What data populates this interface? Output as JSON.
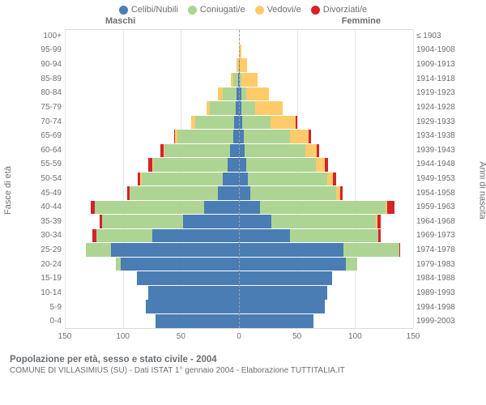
{
  "legend": {
    "items": [
      {
        "label": "Celibi/Nubili",
        "color": "#4a7db4"
      },
      {
        "label": "Coniugati/e",
        "color": "#aed494"
      },
      {
        "label": "Vedovi/e",
        "color": "#ffcb6a"
      },
      {
        "label": "Divorziati/e",
        "color": "#d4232a"
      }
    ]
  },
  "gender": {
    "male": "Maschi",
    "female": "Femmine"
  },
  "axis": {
    "left_title": "Fasce di età",
    "right_title": "Anni di nascita",
    "xmax": 150,
    "xticks": [
      150,
      100,
      50,
      0,
      50,
      100,
      150
    ],
    "xtick_labels": [
      "150",
      "100",
      "50",
      "0",
      "50",
      "100",
      "150"
    ]
  },
  "colors": {
    "celibi": "#4a7db4",
    "coniugati": "#aed494",
    "vedovi": "#ffcb6a",
    "divorziati": "#d4232a",
    "grid": "#e5e5e5",
    "center": "#9ca0a4",
    "text": "#6b6f73",
    "bg": "#ffffff"
  },
  "rows": [
    {
      "age": "100+",
      "birth": "≤ 1903",
      "m": [
        0,
        0,
        0,
        0
      ],
      "f": [
        0,
        0,
        0,
        0
      ]
    },
    {
      "age": "95-99",
      "birth": "1904-1908",
      "m": [
        0,
        0,
        0,
        0
      ],
      "f": [
        0,
        0,
        2,
        0
      ]
    },
    {
      "age": "90-94",
      "birth": "1909-1913",
      "m": [
        0,
        0,
        2,
        0
      ],
      "f": [
        1,
        0,
        6,
        0
      ]
    },
    {
      "age": "85-89",
      "birth": "1914-1918",
      "m": [
        1,
        4,
        2,
        0
      ],
      "f": [
        1,
        1,
        14,
        0
      ]
    },
    {
      "age": "80-84",
      "birth": "1919-1923",
      "m": [
        2,
        12,
        4,
        0
      ],
      "f": [
        2,
        4,
        20,
        0
      ]
    },
    {
      "age": "75-79",
      "birth": "1924-1928",
      "m": [
        3,
        22,
        3,
        0
      ],
      "f": [
        2,
        12,
        24,
        0
      ]
    },
    {
      "age": "70-74",
      "birth": "1929-1933",
      "m": [
        4,
        34,
        3,
        0
      ],
      "f": [
        3,
        24,
        22,
        1
      ]
    },
    {
      "age": "65-69",
      "birth": "1934-1938",
      "m": [
        5,
        48,
        2,
        1
      ],
      "f": [
        4,
        40,
        16,
        2
      ]
    },
    {
      "age": "60-64",
      "birth": "1939-1943",
      "m": [
        8,
        56,
        1,
        3
      ],
      "f": [
        5,
        52,
        10,
        2
      ]
    },
    {
      "age": "55-59",
      "birth": "1944-1948",
      "m": [
        10,
        64,
        1,
        3
      ],
      "f": [
        6,
        60,
        8,
        3
      ]
    },
    {
      "age": "50-54",
      "birth": "1949-1953",
      "m": [
        14,
        70,
        1,
        2
      ],
      "f": [
        8,
        68,
        5,
        3
      ]
    },
    {
      "age": "45-49",
      "birth": "1954-1958",
      "m": [
        18,
        76,
        0,
        2
      ],
      "f": [
        10,
        74,
        3,
        2
      ]
    },
    {
      "age": "40-44",
      "birth": "1959-1963",
      "m": [
        30,
        94,
        0,
        4
      ],
      "f": [
        18,
        108,
        2,
        6
      ]
    },
    {
      "age": "35-39",
      "birth": "1964-1968",
      "m": [
        48,
        70,
        0,
        2
      ],
      "f": [
        28,
        90,
        1,
        3
      ]
    },
    {
      "age": "30-34",
      "birth": "1969-1973",
      "m": [
        75,
        48,
        0,
        3
      ],
      "f": [
        44,
        76,
        0,
        2
      ]
    },
    {
      "age": "25-29",
      "birth": "1974-1978",
      "m": [
        110,
        22,
        0,
        0
      ],
      "f": [
        90,
        48,
        0,
        1
      ]
    },
    {
      "age": "20-24",
      "birth": "1979-1983",
      "m": [
        102,
        4,
        0,
        0
      ],
      "f": [
        92,
        10,
        0,
        0
      ]
    },
    {
      "age": "15-19",
      "birth": "1984-1988",
      "m": [
        88,
        0,
        0,
        0
      ],
      "f": [
        80,
        0,
        0,
        0
      ]
    },
    {
      "age": "10-14",
      "birth": "1989-1993",
      "m": [
        78,
        0,
        0,
        0
      ],
      "f": [
        76,
        0,
        0,
        0
      ]
    },
    {
      "age": "5-9",
      "birth": "1994-1998",
      "m": [
        80,
        0,
        0,
        0
      ],
      "f": [
        74,
        0,
        0,
        0
      ]
    },
    {
      "age": "0-4",
      "birth": "1999-2003",
      "m": [
        72,
        0,
        0,
        0
      ],
      "f": [
        64,
        0,
        0,
        0
      ]
    }
  ],
  "footer": {
    "title": "Popolazione per età, sesso e stato civile - 2004",
    "sub": "COMUNE DI VILLASIMIUS (SU) - Dati ISTAT 1° gennaio 2004 - Elaborazione TUTTITALIA.IT"
  },
  "bar_gap_pct": 5
}
